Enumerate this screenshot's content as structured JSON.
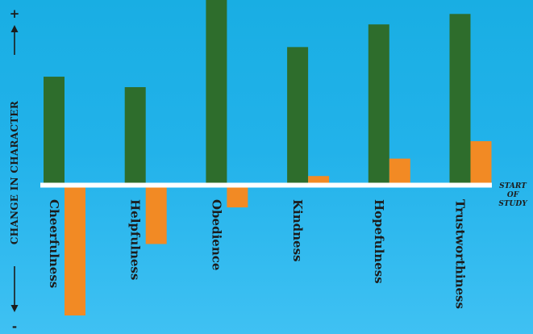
{
  "chart_data": {
    "type": "bar",
    "ylabel": "CHANGE IN CHARACTER",
    "y_positive_marker": "+",
    "y_negative_marker": "-",
    "baseline_label": [
      "START",
      "OF",
      "STUDY"
    ],
    "categories": [
      "Cheerfulness",
      "Helpfulness",
      "Obedience",
      "Kindness",
      "Hopefulness",
      "Trustworthiness"
    ],
    "series": [
      {
        "values": [
          6.2,
          5.6,
          10.6,
          7.9,
          9.2,
          9.8
        ],
        "color": "#2e6d2c"
      },
      {
        "values": [
          -7.5,
          -3.4,
          -1.3,
          0.5,
          1.5,
          2.5
        ],
        "color": "#f28a24"
      }
    ],
    "ylim": [
      -8,
      10.6
    ],
    "grid": false
  }
}
